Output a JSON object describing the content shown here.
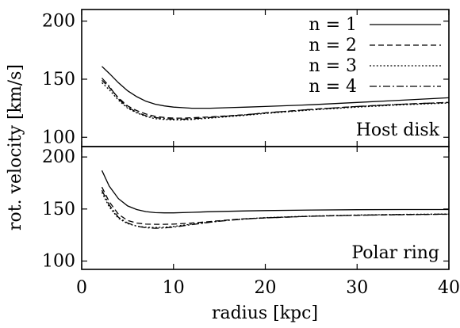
{
  "chart_data": {
    "type": "line",
    "xlabel": "radius [kpc]",
    "ylabel": "rot. velocity [km/s]",
    "xlim": [
      0,
      40
    ],
    "xticks": [
      0,
      10,
      20,
      30,
      40
    ],
    "legend": {
      "placement": "top-right",
      "entries": [
        {
          "name": "n = 1",
          "dash": "solid"
        },
        {
          "name": "n = 2",
          "dash": "dashed"
        },
        {
          "name": "n = 3",
          "dash": "dotted"
        },
        {
          "name": "n = 4",
          "dash": "dash-dot"
        }
      ]
    },
    "panels": [
      {
        "id": "host",
        "label": "Host disk",
        "ylim": [
          92,
          210
        ],
        "yticks": [
          100,
          150,
          200
        ],
        "series": [
          {
            "name": "n = 1",
            "x": [
              2.2,
              3,
              4,
              5,
              6,
              7,
              8,
              9,
              10,
              11,
              12,
              13,
              14,
              16,
              18,
              20,
              25,
              30,
              35,
              40
            ],
            "y": [
              161,
              155,
              147,
              140,
              135,
              131,
              128.5,
              127,
              126,
              125.5,
              125,
              125,
              125,
              125.5,
              126,
              126.5,
              128,
              130,
              132,
              134
            ]
          },
          {
            "name": "n = 2",
            "x": [
              2.2,
              3,
              4,
              5,
              6,
              7,
              8,
              9,
              10,
              11,
              12,
              14,
              16,
              18,
              20,
              25,
              30,
              35,
              40
            ],
            "y": [
              149,
              143,
              134,
              127,
              123,
              120,
              118,
              117,
              116.5,
              116.5,
              116.8,
              117.5,
              118.5,
              119.5,
              121,
              124,
              126.5,
              128.5,
              130
            ]
          },
          {
            "name": "n = 3",
            "x": [
              2.2,
              3,
              4,
              5,
              6,
              7,
              8,
              9,
              10,
              11,
              12,
              14,
              16,
              18,
              20,
              25,
              30,
              35,
              40
            ],
            "y": [
              147,
              141,
              132,
              125,
              121,
              118,
              116,
              115.3,
              115,
              115,
              115.3,
              116.5,
              117.8,
              119,
              120.5,
              123.5,
              126,
              128,
              129.5
            ]
          },
          {
            "name": "n = 4",
            "x": [
              2.2,
              3,
              4,
              5,
              6,
              7,
              8,
              9,
              10,
              11,
              12,
              14,
              16,
              18,
              20,
              25,
              30,
              35,
              40
            ],
            "y": [
              151,
              144,
              133,
              126,
              121.5,
              118.5,
              117,
              116,
              115.6,
              115.6,
              115.9,
              117,
              118.3,
              119.5,
              121,
              124,
              126.5,
              128.5,
              130
            ]
          }
        ]
      },
      {
        "id": "polar",
        "label": "Polar ring",
        "ylim": [
          92,
          210
        ],
        "yticks": [
          100,
          150,
          200
        ],
        "series": [
          {
            "name": "n = 1",
            "x": [
              2.2,
              3,
              4,
              5,
              6,
              7,
              8,
              9,
              10,
              12,
              14,
              16,
              18,
              20,
              25,
              30,
              35,
              40
            ],
            "y": [
              187,
              172,
              160,
              153,
              149.5,
              147.5,
              146.5,
              146.3,
              146.3,
              146.8,
              147.4,
              147.8,
              148.2,
              148.5,
              149,
              149.3,
              149.5,
              149.5
            ]
          },
          {
            "name": "n = 2",
            "x": [
              2.2,
              3,
              4,
              5,
              6,
              7,
              8,
              9,
              10,
              12,
              14,
              16,
              18,
              20,
              25,
              30,
              35,
              40
            ],
            "y": [
              171,
              157,
              145,
              139,
              136.5,
              135.5,
              135.3,
              135.3,
              135.5,
              136.5,
              138,
              139.5,
              140.7,
              141.5,
              143,
              144,
              144.5,
              145
            ]
          },
          {
            "name": "n = 3",
            "x": [
              2.2,
              3,
              4,
              5,
              6,
              7,
              8,
              9,
              10,
              12,
              14,
              16,
              18,
              20,
              25,
              30,
              35,
              40
            ],
            "y": [
              166,
              152,
              141,
              136,
              133.5,
              132.5,
              132.2,
              132.5,
              133.3,
              135.5,
              137.5,
              139.3,
              140.7,
              141.7,
              143.2,
              144.2,
              144.8,
              145.2
            ]
          },
          {
            "name": "n = 4",
            "x": [
              2.2,
              3,
              4,
              5,
              6,
              7,
              8,
              9,
              10,
              12,
              14,
              16,
              18,
              20,
              25,
              30,
              35,
              40
            ],
            "y": [
              168,
              154,
              142,
              136.5,
              133.5,
              132,
              131.5,
              131.8,
              132.6,
              135,
              137.3,
              139.1,
              140.5,
              141.5,
              143.1,
              144.1,
              144.7,
              145.1
            ]
          }
        ]
      }
    ]
  }
}
